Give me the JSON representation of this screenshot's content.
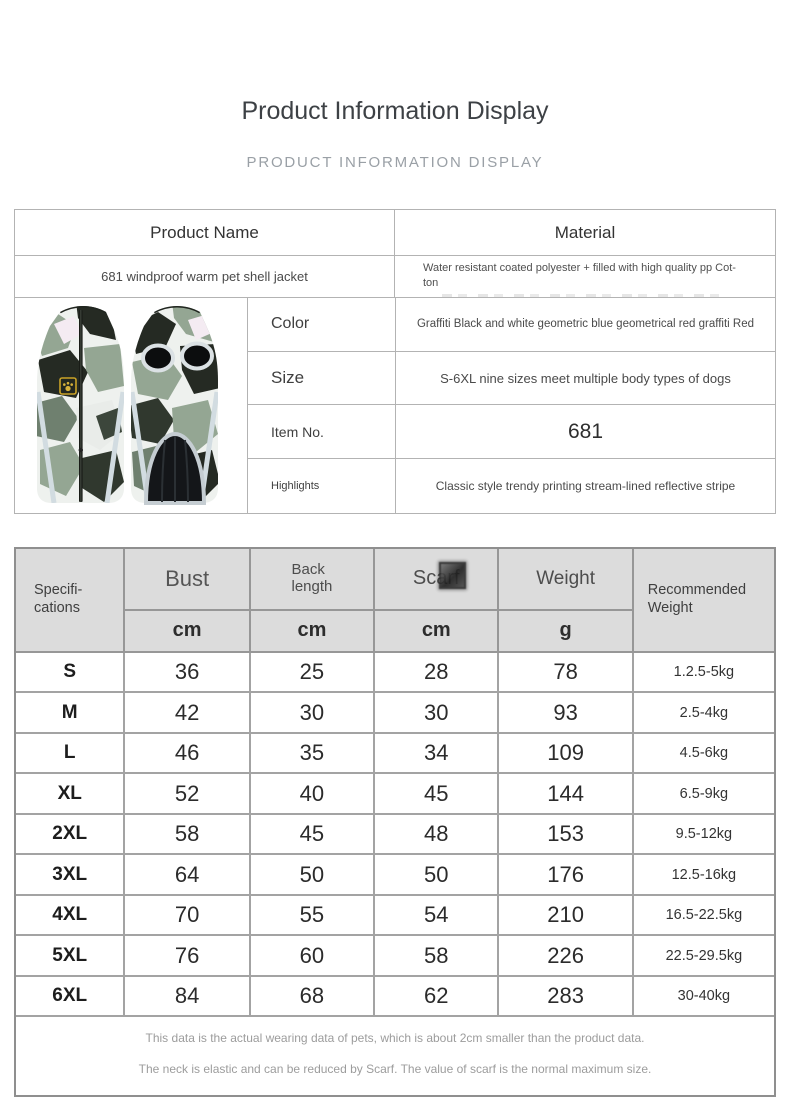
{
  "page": {
    "title": "Product Information Display",
    "subtitle": "PRODUCT INFORMATION DISPLAY"
  },
  "product_table": {
    "header_name": "Product Name",
    "header_material": "Material",
    "name_value": "681 windproof warm pet shell jacket",
    "material_value": "Water resistant coated polyester + filled with high quality pp Cot-\nton",
    "details": [
      {
        "label": "Color",
        "value": "Graffiti Black and white geometric blue geometrical red graffiti Red"
      },
      {
        "label": "Size",
        "value": "S-6XL nine sizes meet multiple body types of dogs"
      },
      {
        "label": "Item No.",
        "value": "681"
      },
      {
        "label": "Highlights",
        "value": "Classic style trendy printing stream-lined reflective stripe"
      }
    ],
    "image_alt": "681 camouflage pet shell jacket, front and back views"
  },
  "size_table": {
    "first_col_header": "Specifi-\ncations",
    "columns": [
      {
        "title": "Bust",
        "unit": "cm"
      },
      {
        "title": "Back\nlength",
        "unit": "cm"
      },
      {
        "title": "Scarf",
        "unit": "cm"
      },
      {
        "title": "Weight",
        "unit": "g"
      }
    ],
    "last_col_header": "Recommended\nWeight",
    "rows": [
      [
        "S",
        "36",
        "25",
        "28",
        "78",
        "1.2.5-5kg"
      ],
      [
        "M",
        "42",
        "30",
        "30",
        "93",
        "2.5-4kg"
      ],
      [
        "L",
        "46",
        "35",
        "34",
        "109",
        "4.5-6kg"
      ],
      [
        "XL",
        "52",
        "40",
        "45",
        "144",
        "6.5-9kg"
      ],
      [
        "2XL",
        "58",
        "45",
        "48",
        "153",
        "9.5-12kg"
      ],
      [
        "3XL",
        "64",
        "50",
        "50",
        "176",
        "12.5-16kg"
      ],
      [
        "4XL",
        "70",
        "55",
        "54",
        "210",
        "16.5-22.5kg"
      ],
      [
        "5XL",
        "76",
        "60",
        "58",
        "226",
        "22.5-29.5kg"
      ],
      [
        "6XL",
        "84",
        "68",
        "62",
        "283",
        "30-40kg"
      ]
    ],
    "notes": [
      "This data is the actual wearing data of pets, which is about 2cm smaller than the product data.",
      "The neck is elastic and can be reduced by Scarf. The value of scarf is the normal maximum size."
    ]
  },
  "colors": {
    "title_text": "#3d4145",
    "subtitle_text": "#9aa0a6",
    "card_border": "#b3b3b3",
    "size_table_border": "#8f8f8f",
    "size_header_bg": "#dcdcdc",
    "note_text": "#9c9c9c",
    "camo_palette": [
      "#eef1ee",
      "#94a693",
      "#6f806f",
      "#252a23",
      "#30382e",
      "#f4ebf2"
    ],
    "tag_gold": "#c9a227",
    "reflective_trim": "#d2dce1"
  },
  "icons": {
    "tag": "paw-icon"
  }
}
